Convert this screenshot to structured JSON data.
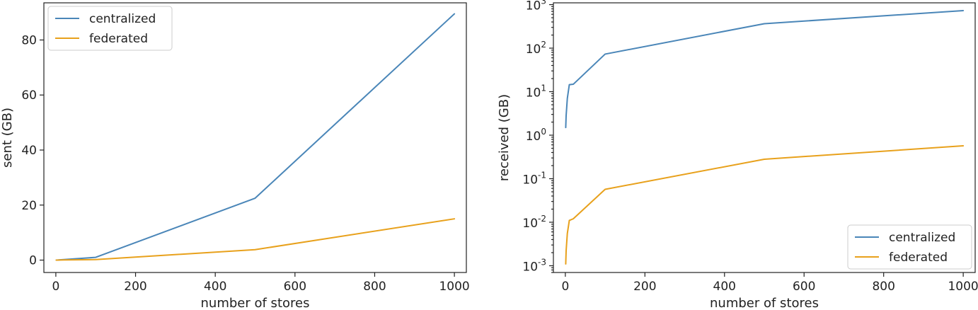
{
  "chart_data": [
    {
      "type": "line",
      "xlabel": "number of stores",
      "ylabel": "sent (GB)",
      "xlim": [
        -30,
        1030
      ],
      "ylim": [
        -4.5,
        93.5
      ],
      "xticks": [
        0,
        200,
        400,
        600,
        800,
        1000
      ],
      "yticks": [
        0,
        20,
        40,
        60,
        80
      ],
      "ytick_labels": [
        "0",
        "20",
        "40",
        "60",
        "80"
      ],
      "yscale": "linear",
      "grid": false,
      "legend_position": "top-left",
      "series": [
        {
          "name": "centralized",
          "color": "#4a86b8",
          "x": [
            1,
            5,
            10,
            20,
            100,
            500,
            1000
          ],
          "y": [
            0.0,
            0.05,
            0.1,
            0.2,
            1.0,
            22.5,
            89.5
          ]
        },
        {
          "name": "federated",
          "color": "#e8a11c",
          "x": [
            1,
            5,
            10,
            20,
            100,
            500,
            1000
          ],
          "y": [
            0.0,
            0.01,
            0.02,
            0.05,
            0.2,
            3.8,
            15.0
          ]
        }
      ]
    },
    {
      "type": "line",
      "xlabel": "number of stores",
      "ylabel": "received (GB)",
      "xlim": [
        -30,
        1030
      ],
      "ylim": [
        0.0007,
        1100
      ],
      "xticks": [
        0,
        200,
        400,
        600,
        800,
        1000
      ],
      "yticks": [
        0.001,
        0.01,
        0.1,
        1,
        10,
        100,
        1000
      ],
      "ytick_labels": [
        {
          "base": "10",
          "exp": "-3"
        },
        {
          "base": "10",
          "exp": "-2"
        },
        {
          "base": "10",
          "exp": "-1"
        },
        {
          "base": "10",
          "exp": "0"
        },
        {
          "base": "10",
          "exp": "1"
        },
        {
          "base": "10",
          "exp": "2"
        },
        {
          "base": "10",
          "exp": "3"
        }
      ],
      "yscale": "log",
      "grid": false,
      "legend_position": "bottom-right",
      "series": [
        {
          "name": "centralized",
          "color": "#4a86b8",
          "x": [
            1,
            2,
            5,
            10,
            20,
            100,
            500,
            1000
          ],
          "y": [
            1.5,
            2.8,
            7.0,
            14.5,
            14.8,
            73,
            365,
            730
          ]
        },
        {
          "name": "federated",
          "color": "#e8a11c",
          "x": [
            1,
            2,
            5,
            10,
            20,
            100,
            500,
            1000
          ],
          "y": [
            0.0011,
            0.0022,
            0.0055,
            0.011,
            0.012,
            0.057,
            0.28,
            0.57
          ]
        }
      ]
    }
  ]
}
